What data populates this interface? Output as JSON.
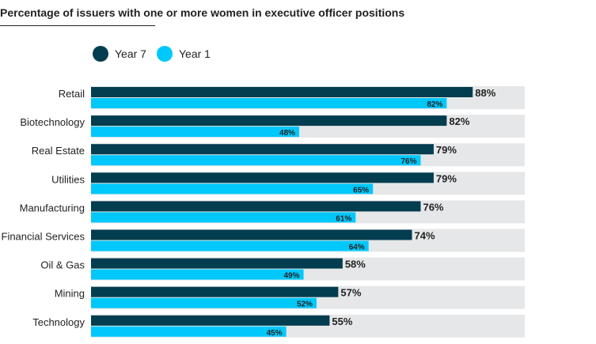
{
  "chart_data": {
    "type": "bar",
    "orientation": "horizontal",
    "title": "Percentage of issuers with one or more women in executive officer positions",
    "categories": [
      "Retail",
      "Biotechnology",
      "Real Estate",
      "Utilities",
      "Manufacturing",
      "Financial Services",
      "Oil & Gas",
      "Mining",
      "Technology"
    ],
    "series": [
      {
        "name": "Year 7",
        "color": "#033d50",
        "values": [
          88,
          82,
          79,
          79,
          76,
          74,
          58,
          57,
          55
        ]
      },
      {
        "name": "Year 1",
        "color": "#00c8fb",
        "values": [
          82,
          48,
          76,
          65,
          61,
          64,
          49,
          52,
          45
        ]
      }
    ],
    "xlim": [
      0,
      100
    ],
    "background_color": "#e6e7e8",
    "value_suffix": "%",
    "legend": "top-left"
  }
}
